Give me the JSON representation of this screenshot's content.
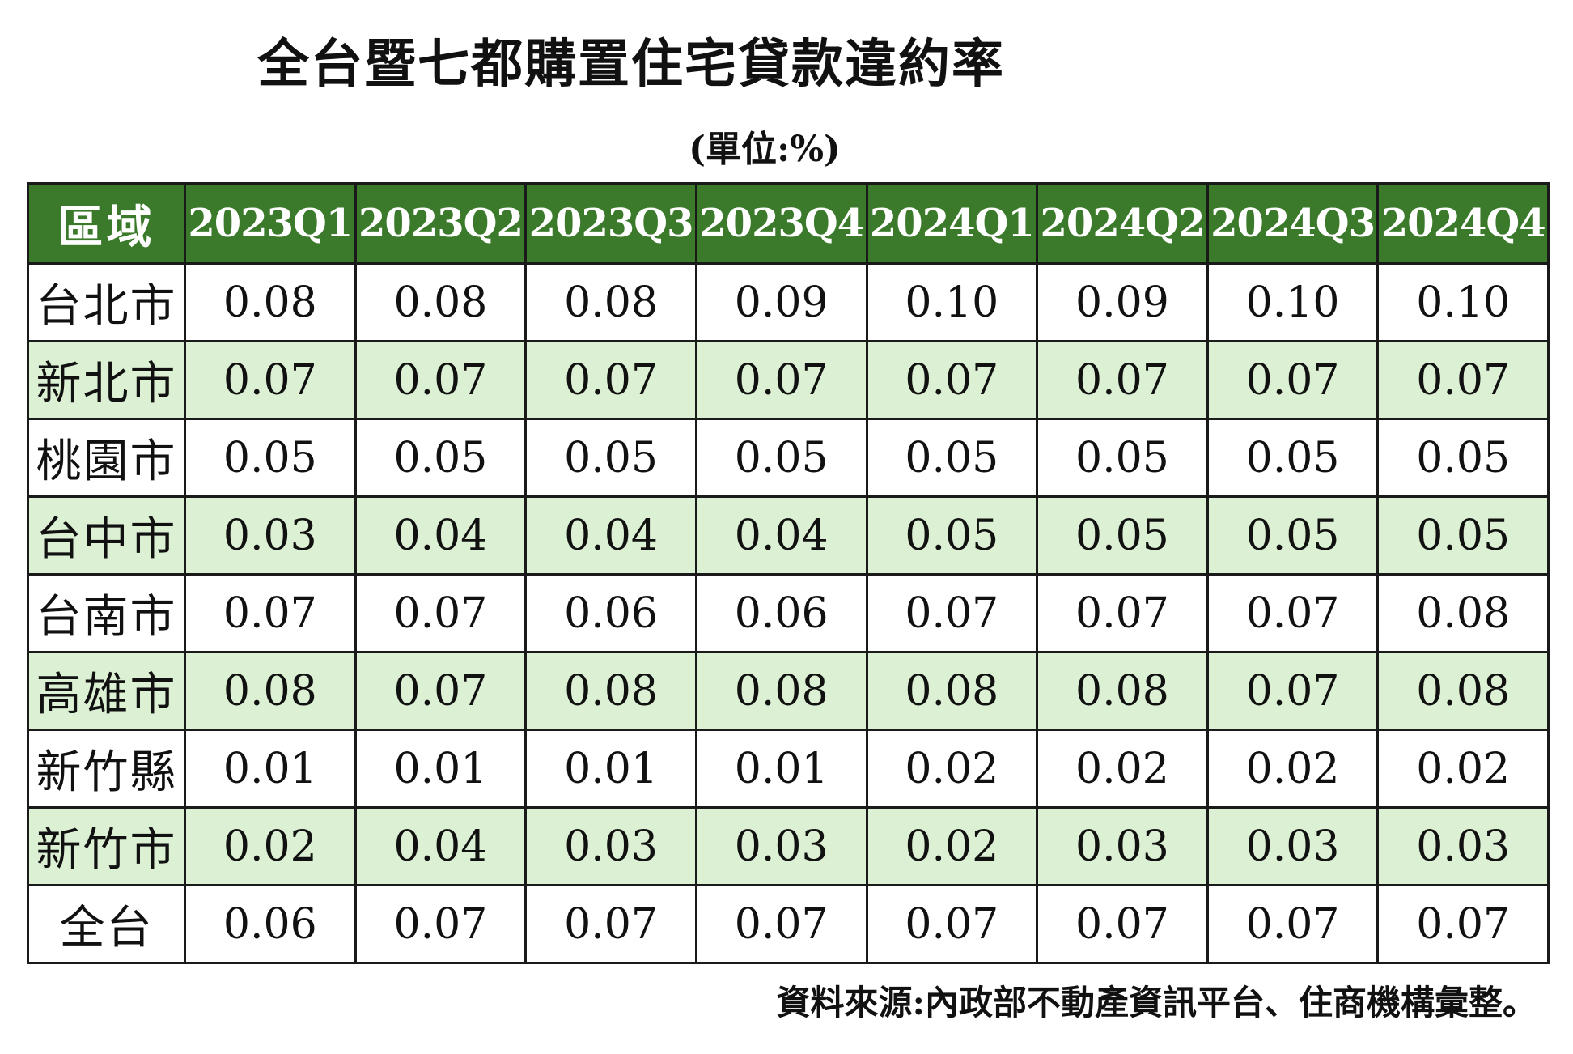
{
  "title": "全台暨七都購置住宅貸款違約率",
  "unit": "(單位:%)",
  "header": {
    "region_label": "區域",
    "periods": [
      "2023Q1",
      "2023Q2",
      "2023Q3",
      "2023Q4",
      "2024Q1",
      "2024Q2",
      "2024Q3",
      "2024Q4"
    ]
  },
  "rows": [
    {
      "region": "台北市",
      "values": [
        "0.08",
        "0.08",
        "0.08",
        "0.09",
        "0.10",
        "0.09",
        "0.10",
        "0.10"
      ]
    },
    {
      "region": "新北市",
      "values": [
        "0.07",
        "0.07",
        "0.07",
        "0.07",
        "0.07",
        "0.07",
        "0.07",
        "0.07"
      ]
    },
    {
      "region": "桃園市",
      "values": [
        "0.05",
        "0.05",
        "0.05",
        "0.05",
        "0.05",
        "0.05",
        "0.05",
        "0.05"
      ]
    },
    {
      "region": "台中市",
      "values": [
        "0.03",
        "0.04",
        "0.04",
        "0.04",
        "0.05",
        "0.05",
        "0.05",
        "0.05"
      ]
    },
    {
      "region": "台南市",
      "values": [
        "0.07",
        "0.07",
        "0.06",
        "0.06",
        "0.07",
        "0.07",
        "0.07",
        "0.08"
      ]
    },
    {
      "region": "高雄市",
      "values": [
        "0.08",
        "0.07",
        "0.08",
        "0.08",
        "0.08",
        "0.08",
        "0.07",
        "0.08"
      ]
    },
    {
      "region": "新竹縣",
      "values": [
        "0.01",
        "0.01",
        "0.01",
        "0.01",
        "0.02",
        "0.02",
        "0.02",
        "0.02"
      ]
    },
    {
      "region": "新竹市",
      "values": [
        "0.02",
        "0.04",
        "0.03",
        "0.03",
        "0.02",
        "0.03",
        "0.03",
        "0.03"
      ]
    },
    {
      "region": "全台",
      "values": [
        "0.06",
        "0.07",
        "0.07",
        "0.07",
        "0.07",
        "0.07",
        "0.07",
        "0.07"
      ]
    }
  ],
  "source": "資料來源:內政部不動產資訊平台、住商機構彙整。",
  "colors": {
    "header_bg": "#3a7a2a",
    "header_text": "#ffffff",
    "alt_row_bg": "#dcf0d4",
    "row_bg": "#ffffff",
    "border": "#1a1a1a"
  }
}
